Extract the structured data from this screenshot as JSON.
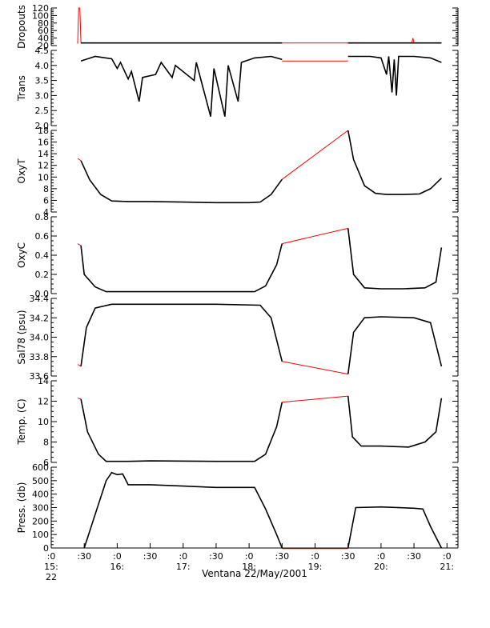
{
  "chart_data": {
    "type": "line",
    "xlabel": "Ventana 22/May/2001",
    "x_ticks": [
      {
        "time": "15:00",
        "label": ":0",
        "sub": "15:",
        "sub2": "22"
      },
      {
        "time": "15:30",
        "label": ":30",
        "sub": "",
        "sub2": ""
      },
      {
        "time": "16:00",
        "label": ":0",
        "sub": "16:",
        "sub2": ""
      },
      {
        "time": "16:30",
        "label": ":30",
        "sub": "",
        "sub2": ""
      },
      {
        "time": "17:00",
        "label": ":0",
        "sub": "17:",
        "sub2": ""
      },
      {
        "time": "17:30",
        "label": ":30",
        "sub": "",
        "sub2": ""
      },
      {
        "time": "18:00",
        "label": ":0",
        "sub": "18:",
        "sub2": ""
      },
      {
        "time": "18:30",
        "label": ":30",
        "sub": "",
        "sub2": ""
      },
      {
        "time": "19:00",
        "label": ":0",
        "sub": "19:",
        "sub2": ""
      },
      {
        "time": "19:30",
        "label": ":30",
        "sub": "",
        "sub2": ""
      },
      {
        "time": "20:00",
        "label": ":0",
        "sub": "20:",
        "sub2": ""
      },
      {
        "time": "20:30",
        "label": ":30",
        "sub": "",
        "sub2": ""
      },
      {
        "time": "21:00",
        "label": ":0",
        "sub": "21:",
        "sub2": ""
      }
    ],
    "xlim": [
      "15:00",
      "21:10"
    ],
    "colors": {
      "line": "#000000",
      "gap": "#ff0000"
    },
    "panels": [
      {
        "ylabel": "Dropouts",
        "ylim": [
          20,
          120
        ],
        "yticks": [
          20,
          40,
          60,
          80,
          100,
          120
        ],
        "ytick_labels": [
          "20",
          "40",
          "60",
          "80",
          "100",
          "120"
        ],
        "series": [
          {
            "color": "red",
            "points": [
              [
                "15:24",
                25
              ],
              [
                "15:25",
                120
              ],
              [
                "15:26",
                120
              ],
              [
                "15:27",
                27
              ],
              [
                "18:30",
                27
              ],
              [
                "19:30",
                27
              ],
              [
                "20:28",
                27
              ],
              [
                "20:29",
                40
              ],
              [
                "20:30",
                27
              ],
              [
                "20:55",
                27
              ]
            ]
          },
          {
            "color": "black",
            "points": [
              [
                "15:27",
                27
              ],
              [
                "18:30",
                27
              ]
            ]
          },
          {
            "color": "black",
            "points": [
              [
                "19:30",
                27
              ],
              [
                "20:55",
                27
              ]
            ]
          }
        ]
      },
      {
        "ylabel": "Trans",
        "ylim": [
          2.0,
          4.5
        ],
        "yticks": [
          2.0,
          2.5,
          3.0,
          3.5,
          4.0,
          4.5
        ],
        "ytick_labels": [
          "2.0",
          "2.5",
          "3.0",
          "3.5",
          "4.0",
          "4.5"
        ],
        "series": [
          {
            "color": "black",
            "points": [
              [
                "15:27",
                4.15
              ],
              [
                "15:40",
                4.3
              ],
              [
                "15:55",
                4.22
              ],
              [
                "16:00",
                3.9
              ],
              [
                "16:03",
                4.1
              ],
              [
                "16:10",
                3.55
              ],
              [
                "16:13",
                3.8
              ],
              [
                "16:20",
                2.8
              ],
              [
                "16:23",
                3.6
              ],
              [
                "16:35",
                3.7
              ],
              [
                "16:40",
                4.1
              ],
              [
                "16:50",
                3.6
              ],
              [
                "16:53",
                4.0
              ],
              [
                "17:10",
                3.5
              ],
              [
                "17:12",
                4.1
              ],
              [
                "17:25",
                2.3
              ],
              [
                "17:28",
                3.9
              ],
              [
                "17:38",
                2.3
              ],
              [
                "17:41",
                4.0
              ],
              [
                "17:50",
                2.8
              ],
              [
                "17:53",
                4.1
              ],
              [
                "18:05",
                4.25
              ],
              [
                "18:20",
                4.3
              ],
              [
                "18:30",
                4.2
              ]
            ]
          },
          {
            "color": "red",
            "points": [
              [
                "18:30",
                4.15
              ],
              [
                "19:30",
                4.15
              ]
            ]
          },
          {
            "color": "black",
            "points": [
              [
                "19:30",
                4.3
              ],
              [
                "19:50",
                4.3
              ],
              [
                "20:00",
                4.25
              ],
              [
                "20:05",
                3.7
              ],
              [
                "20:07",
                4.3
              ],
              [
                "20:10",
                3.1
              ],
              [
                "20:12",
                4.2
              ],
              [
                "20:14",
                3.0
              ],
              [
                "20:16",
                4.3
              ],
              [
                "20:30",
                4.3
              ],
              [
                "20:45",
                4.25
              ],
              [
                "20:55",
                4.1
              ]
            ]
          }
        ]
      },
      {
        "ylabel": "OxyT",
        "ylim": [
          4,
          18
        ],
        "yticks": [
          4,
          6,
          8,
          10,
          12,
          14,
          16,
          18
        ],
        "ytick_labels": [
          "4",
          "6",
          "8",
          "10",
          "12",
          "14",
          "16",
          "18"
        ],
        "series": [
          {
            "color": "red",
            "points": [
              [
                "15:24",
                13.2
              ],
              [
                "15:27",
                12.8
              ]
            ]
          },
          {
            "color": "black",
            "points": [
              [
                "15:27",
                12.8
              ],
              [
                "15:35",
                9.5
              ],
              [
                "15:45",
                7.0
              ],
              [
                "15:55",
                5.9
              ],
              [
                "16:10",
                5.8
              ],
              [
                "16:30",
                5.8
              ],
              [
                "17:00",
                5.7
              ],
              [
                "17:30",
                5.6
              ],
              [
                "18:00",
                5.6
              ],
              [
                "18:10",
                5.7
              ],
              [
                "18:20",
                7.0
              ],
              [
                "18:30",
                9.6
              ]
            ]
          },
          {
            "color": "red",
            "points": [
              [
                "18:30",
                9.6
              ],
              [
                "19:30",
                18.3
              ]
            ]
          },
          {
            "color": "black",
            "points": [
              [
                "19:30",
                18.3
              ],
              [
                "19:35",
                13.0
              ],
              [
                "19:45",
                8.5
              ],
              [
                "19:55",
                7.2
              ],
              [
                "20:05",
                7.0
              ],
              [
                "20:20",
                7.0
              ],
              [
                "20:35",
                7.1
              ],
              [
                "20:45",
                8.0
              ],
              [
                "20:55",
                9.8
              ]
            ]
          }
        ]
      },
      {
        "ylabel": "OxyC",
        "ylim": [
          0.0,
          0.8
        ],
        "yticks": [
          0.0,
          0.2,
          0.4,
          0.6,
          0.8
        ],
        "ytick_labels": [
          "0.0",
          "0.2",
          "0.4",
          "0.6",
          "0.8"
        ],
        "series": [
          {
            "color": "red",
            "points": [
              [
                "15:24",
                0.52
              ],
              [
                "15:27",
                0.5
              ]
            ]
          },
          {
            "color": "black",
            "points": [
              [
                "15:27",
                0.5
              ],
              [
                "15:30",
                0.2
              ],
              [
                "15:40",
                0.07
              ],
              [
                "15:50",
                0.02
              ],
              [
                "16:30",
                0.02
              ],
              [
                "17:30",
                0.02
              ],
              [
                "18:05",
                0.02
              ],
              [
                "18:15",
                0.08
              ],
              [
                "18:25",
                0.3
              ],
              [
                "18:30",
                0.52
              ]
            ]
          },
          {
            "color": "red",
            "points": [
              [
                "18:30",
                0.52
              ],
              [
                "19:30",
                0.68
              ]
            ]
          },
          {
            "color": "black",
            "points": [
              [
                "19:30",
                0.68
              ],
              [
                "19:35",
                0.2
              ],
              [
                "19:45",
                0.06
              ],
              [
                "20:00",
                0.05
              ],
              [
                "20:20",
                0.05
              ],
              [
                "20:40",
                0.06
              ],
              [
                "20:50",
                0.12
              ],
              [
                "20:55",
                0.48
              ]
            ]
          }
        ]
      },
      {
        "ylabel": "Sal78 (psu)",
        "ylim": [
          33.6,
          34.4
        ],
        "yticks": [
          33.6,
          33.8,
          34.0,
          34.2,
          34.4
        ],
        "ytick_labels": [
          "33.6",
          "33.8",
          "34.0",
          "34.2",
          "34.4"
        ],
        "series": [
          {
            "color": "red",
            "points": [
              [
                "15:24",
                33.72
              ],
              [
                "15:27",
                33.7
              ]
            ]
          },
          {
            "color": "black",
            "points": [
              [
                "15:27",
                33.7
              ],
              [
                "15:32",
                34.1
              ],
              [
                "15:40",
                34.3
              ],
              [
                "15:55",
                34.34
              ],
              [
                "16:30",
                34.34
              ],
              [
                "17:30",
                34.34
              ],
              [
                "18:10",
                34.33
              ],
              [
                "18:20",
                34.2
              ],
              [
                "18:30",
                33.75
              ]
            ]
          },
          {
            "color": "red",
            "points": [
              [
                "18:30",
                33.75
              ],
              [
                "19:30",
                33.62
              ]
            ]
          },
          {
            "color": "black",
            "points": [
              [
                "19:30",
                33.62
              ],
              [
                "19:35",
                34.05
              ],
              [
                "19:45",
                34.2
              ],
              [
                "20:00",
                34.21
              ],
              [
                "20:30",
                34.2
              ],
              [
                "20:45",
                34.15
              ],
              [
                "20:55",
                33.7
              ]
            ]
          }
        ]
      },
      {
        "ylabel": "Temp. (C)",
        "ylim": [
          6,
          14
        ],
        "yticks": [
          6,
          8,
          10,
          12,
          14
        ],
        "ytick_labels": [
          "6",
          "8",
          "10",
          "12",
          "14"
        ],
        "series": [
          {
            "color": "red",
            "points": [
              [
                "15:24",
                12.3
              ],
              [
                "15:27",
                12.2
              ]
            ]
          },
          {
            "color": "black",
            "points": [
              [
                "15:27",
                12.2
              ],
              [
                "15:33",
                9.0
              ],
              [
                "15:43",
                6.8
              ],
              [
                "15:50",
                6.1
              ],
              [
                "16:10",
                6.1
              ],
              [
                "16:30",
                6.15
              ],
              [
                "17:30",
                6.1
              ],
              [
                "18:05",
                6.1
              ],
              [
                "18:15",
                6.8
              ],
              [
                "18:25",
                9.5
              ],
              [
                "18:30",
                11.9
              ]
            ]
          },
          {
            "color": "red",
            "points": [
              [
                "18:30",
                11.9
              ],
              [
                "19:30",
                12.5
              ]
            ]
          },
          {
            "color": "black",
            "points": [
              [
                "19:30",
                12.5
              ],
              [
                "19:34",
                8.5
              ],
              [
                "19:42",
                7.6
              ],
              [
                "20:00",
                7.6
              ],
              [
                "20:25",
                7.5
              ],
              [
                "20:40",
                8.0
              ],
              [
                "20:50",
                9.0
              ],
              [
                "20:55",
                12.3
              ]
            ]
          }
        ]
      },
      {
        "ylabel": "Press. (db)",
        "ylim": [
          0,
          600
        ],
        "yticks": [
          0,
          100,
          200,
          300,
          400,
          500,
          600
        ],
        "ytick_labels": [
          "0",
          "100",
          "200",
          "300",
          "400",
          "500",
          "600"
        ],
        "series": [
          {
            "color": "black",
            "points": [
              [
                "15:30",
                0
              ],
              [
                "15:40",
                250
              ],
              [
                "15:50",
                500
              ],
              [
                "15:55",
                560
              ],
              [
                "16:00",
                545
              ],
              [
                "16:05",
                550
              ],
              [
                "16:10",
                470
              ],
              [
                "16:30",
                470
              ],
              [
                "17:00",
                460
              ],
              [
                "17:30",
                450
              ],
              [
                "18:05",
                450
              ],
              [
                "18:15",
                290
              ],
              [
                "18:25",
                100
              ],
              [
                "18:30",
                0
              ]
            ]
          },
          {
            "color": "red",
            "points": [
              [
                "18:30",
                -5
              ],
              [
                "19:30",
                -5
              ]
            ]
          },
          {
            "color": "black",
            "points": [
              [
                "19:30",
                0
              ],
              [
                "19:37",
                300
              ],
              [
                "20:00",
                305
              ],
              [
                "20:30",
                295
              ],
              [
                "20:38",
                290
              ],
              [
                "20:45",
                160
              ],
              [
                "20:55",
                0
              ]
            ]
          }
        ]
      }
    ]
  }
}
